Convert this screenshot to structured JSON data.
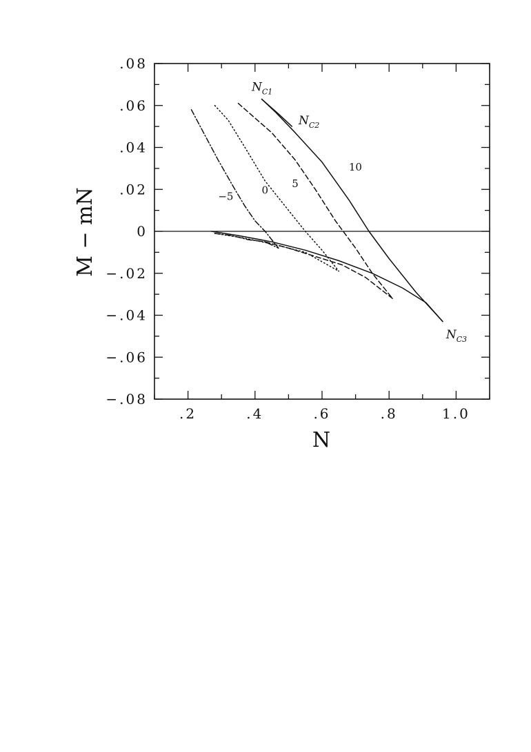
{
  "chart_data": {
    "type": "line",
    "xlabel": "N",
    "ylabel": "M − mN",
    "xlim": [
      0.1,
      1.1
    ],
    "ylim": [
      -0.08,
      0.08
    ],
    "x_ticks": [
      0.2,
      0.4,
      0.6,
      0.8,
      1.0
    ],
    "x_tick_labels": [
      ".2",
      ".4",
      ".6",
      ".8",
      "1.0"
    ],
    "y_ticks": [
      0.08,
      0.06,
      0.04,
      0.02,
      0,
      -0.02,
      -0.04,
      -0.06,
      -0.08
    ],
    "y_tick_labels": [
      ".08",
      ".06",
      ".04",
      ".02",
      "0",
      "−.02",
      "−.04",
      "−.06",
      "−.08"
    ],
    "zero_line": true,
    "grid": false,
    "series": [
      {
        "name": "10",
        "style": "solid",
        "upper": [
          [
            0.42,
            0.063
          ],
          [
            0.46,
            0.057
          ],
          [
            0.52,
            0.047
          ],
          [
            0.6,
            0.033
          ],
          [
            0.68,
            0.015
          ],
          [
            0.74,
            0.0
          ],
          [
            0.8,
            -0.013
          ],
          [
            0.88,
            -0.029
          ],
          [
            0.96,
            -0.043
          ]
        ],
        "lower": [
          [
            0.27,
            0.0
          ],
          [
            0.35,
            -0.002
          ],
          [
            0.45,
            -0.005
          ],
          [
            0.55,
            -0.009
          ],
          [
            0.65,
            -0.014
          ],
          [
            0.75,
            -0.02
          ],
          [
            0.84,
            -0.027
          ],
          [
            0.91,
            -0.034
          ],
          [
            0.96,
            -0.043
          ]
        ],
        "branch": [
          [
            0.42,
            0.063
          ],
          [
            0.47,
            0.056
          ],
          [
            0.51,
            0.05
          ]
        ]
      },
      {
        "name": "5",
        "style": "dashed",
        "upper": [
          [
            0.35,
            0.061
          ],
          [
            0.4,
            0.054
          ],
          [
            0.45,
            0.047
          ],
          [
            0.52,
            0.034
          ],
          [
            0.58,
            0.02
          ],
          [
            0.64,
            0.005
          ],
          [
            0.7,
            -0.008
          ],
          [
            0.75,
            -0.02
          ],
          [
            0.81,
            -0.032
          ]
        ],
        "lower": [
          [
            0.43,
            -0.005
          ],
          [
            0.5,
            -0.008
          ],
          [
            0.58,
            -0.012
          ],
          [
            0.66,
            -0.016
          ],
          [
            0.73,
            -0.022
          ],
          [
            0.81,
            -0.032
          ]
        ]
      },
      {
        "name": "0",
        "style": "dotted",
        "upper": [
          [
            0.28,
            0.06
          ],
          [
            0.32,
            0.053
          ],
          [
            0.37,
            0.04
          ],
          [
            0.43,
            0.024
          ],
          [
            0.5,
            0.01
          ],
          [
            0.55,
            0.0
          ],
          [
            0.6,
            -0.009
          ],
          [
            0.65,
            -0.019
          ]
        ],
        "lower": [
          [
            0.28,
            -0.001
          ],
          [
            0.36,
            -0.003
          ],
          [
            0.45,
            -0.006
          ],
          [
            0.55,
            -0.01
          ],
          [
            0.65,
            -0.019
          ]
        ]
      },
      {
        "name": "−5",
        "style": "dashdot",
        "upper": [
          [
            0.21,
            0.058
          ],
          [
            0.24,
            0.049
          ],
          [
            0.29,
            0.034
          ],
          [
            0.34,
            0.02
          ],
          [
            0.37,
            0.012
          ],
          [
            0.4,
            0.005
          ],
          [
            0.43,
            0.0
          ],
          [
            0.47,
            -0.008
          ]
        ],
        "lower": [
          [
            0.28,
            -0.001
          ],
          [
            0.33,
            -0.002
          ],
          [
            0.38,
            -0.004
          ],
          [
            0.43,
            -0.005
          ],
          [
            0.47,
            -0.008
          ]
        ]
      }
    ],
    "annotations": [
      {
        "text": "N",
        "sub": "C1",
        "x": 0.39,
        "y": 0.067
      },
      {
        "text": "N",
        "sub": "C2",
        "x": 0.53,
        "y": 0.051
      },
      {
        "text": "N",
        "sub": "C3",
        "x": 0.97,
        "y": -0.051
      }
    ],
    "curve_labels": [
      {
        "text": "10",
        "x": 0.68,
        "y": 0.029
      },
      {
        "text": "5",
        "x": 0.51,
        "y": 0.021
      },
      {
        "text": "0",
        "x": 0.42,
        "y": 0.018
      },
      {
        "text": "−5",
        "x": 0.29,
        "y": 0.015
      }
    ]
  }
}
